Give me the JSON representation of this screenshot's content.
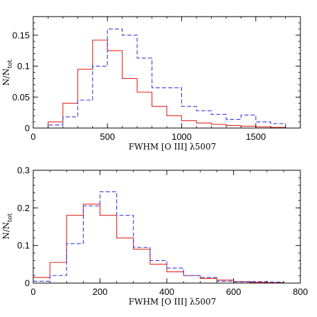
{
  "chart_data": [
    {
      "type": "histogram",
      "xlabel": "FWHM [O III] λ5007",
      "ylabel": {
        "main": "N/N",
        "sub": "tot"
      },
      "xlim": [
        0,
        1800
      ],
      "ylim": [
        0,
        0.18
      ],
      "xticks": [
        0,
        500,
        1000,
        1500
      ],
      "yticks": [
        0,
        0.05,
        0.1,
        0.15
      ],
      "xtick_labels": [
        "0",
        "500",
        "1000",
        "1500"
      ],
      "ytick_labels": [
        "0",
        "0.05",
        "0.1",
        "0.15"
      ],
      "grid": false,
      "series": [
        {
          "style": "solid",
          "color": "#e8221b",
          "bin_edges": [
            0,
            100,
            200,
            300,
            400,
            500,
            600,
            700,
            800,
            900,
            1000,
            1100,
            1200,
            1300,
            1400,
            1500,
            1600,
            1700,
            1800
          ],
          "values": [
            0,
            0.01,
            0.04,
            0.095,
            0.142,
            0.125,
            0.08,
            0.058,
            0.035,
            0.02,
            0.012,
            0.008,
            0.006,
            0.004,
            0.003,
            0.002,
            0.001,
            0
          ]
        },
        {
          "style": "dashed",
          "color": "#3a3adf",
          "bin_edges": [
            0,
            100,
            200,
            300,
            400,
            500,
            600,
            700,
            800,
            900,
            1000,
            1100,
            1200,
            1300,
            1400,
            1500,
            1600,
            1700,
            1800
          ],
          "values": [
            0,
            0.005,
            0.018,
            0.045,
            0.1,
            0.16,
            0.15,
            0.113,
            0.065,
            0.065,
            0.035,
            0.028,
            0.022,
            0.014,
            0.021,
            0.01,
            0.007,
            0
          ]
        }
      ]
    },
    {
      "type": "histogram",
      "xlabel": "FWHM [O III] λ5007",
      "ylabel": {
        "main": "N/N",
        "sub": "tot"
      },
      "xlim": [
        0,
        800
      ],
      "ylim": [
        0,
        0.3
      ],
      "xticks": [
        0,
        200,
        400,
        600,
        800
      ],
      "yticks": [
        0,
        0.1,
        0.2,
        0.3
      ],
      "xtick_labels": [
        "0",
        "200",
        "400",
        "600",
        "800"
      ],
      "ytick_labels": [
        "0",
        "0.1",
        "0.2",
        "0.3"
      ],
      "grid": false,
      "series": [
        {
          "style": "solid",
          "color": "#e8221b",
          "bin_edges": [
            0,
            50,
            100,
            150,
            200,
            250,
            300,
            350,
            400,
            450,
            500,
            550,
            600,
            650,
            700,
            750,
            800
          ],
          "values": [
            0.015,
            0.055,
            0.18,
            0.21,
            0.18,
            0.12,
            0.09,
            0.05,
            0.03,
            0.02,
            0.012,
            0.008,
            0.004,
            0.002,
            0.001,
            0
          ]
        },
        {
          "style": "dashed",
          "color": "#3a3adf",
          "bin_edges": [
            0,
            50,
            100,
            150,
            200,
            250,
            300,
            350,
            400,
            450,
            500,
            550,
            600,
            650,
            700,
            750,
            800
          ],
          "values": [
            0.005,
            0.02,
            0.105,
            0.205,
            0.243,
            0.18,
            0.095,
            0.06,
            0.04,
            0.02,
            0.015,
            0.005,
            0.003,
            0.004,
            0.003,
            0
          ]
        }
      ]
    }
  ]
}
